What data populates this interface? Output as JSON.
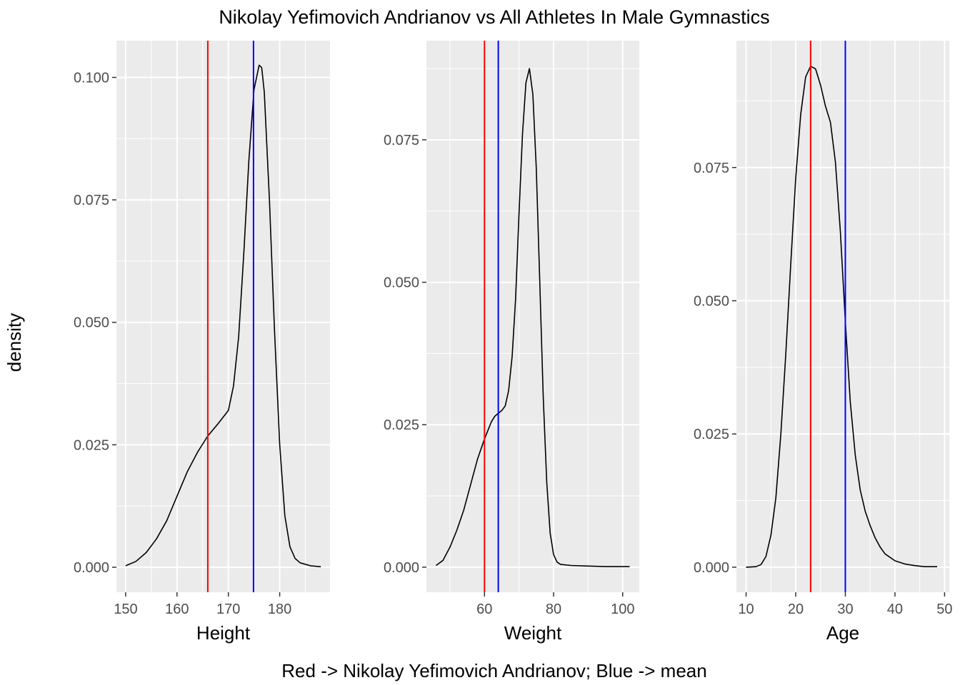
{
  "chart_data": {
    "type": "line",
    "title": "Nikolay Yefimovich Andrianov vs All Athletes In Male Gymnastics",
    "ylabel": "density",
    "caption": "Red -> Nikolay Yefimovich Andrianov; Blue -> mean",
    "colors": {
      "athlete_line": "#ff0000",
      "mean_line": "#0000ff",
      "curve": "#000000",
      "panel_bg": "#ebebeb",
      "grid": "#ffffff"
    },
    "grid": true,
    "panels": [
      {
        "xlabel": "Height",
        "xlim": [
          148.2,
          189.8
        ],
        "ylim": [
          -0.0051,
          0.1075
        ],
        "xticks": [
          150,
          160,
          170,
          180
        ],
        "xtick_labels": [
          "150",
          "160",
          "170",
          "180"
        ],
        "yticks": [
          0.0,
          0.025,
          0.05,
          0.075,
          0.1
        ],
        "ytick_labels": [
          "0.000",
          "0.025",
          "0.050",
          "0.075",
          "0.100"
        ],
        "athlete_value": 166,
        "mean_value": 174.9,
        "density": {
          "x": [
            150,
            152,
            154,
            156,
            158,
            160,
            162,
            164,
            166,
            168,
            170,
            171,
            172,
            173,
            174,
            175,
            176,
            176.5,
            177,
            178,
            179,
            180,
            181,
            182,
            183,
            184,
            186,
            188
          ],
          "y": [
            0.0003,
            0.0012,
            0.003,
            0.0058,
            0.0095,
            0.0145,
            0.0195,
            0.0235,
            0.0268,
            0.0293,
            0.032,
            0.037,
            0.047,
            0.064,
            0.083,
            0.0975,
            0.1025,
            0.102,
            0.097,
            0.075,
            0.048,
            0.025,
            0.0105,
            0.0042,
            0.0018,
            0.0009,
            0.0003,
            0.0001
          ]
        }
      },
      {
        "xlabel": "Weight",
        "xlim": [
          43.2,
          104.8
        ],
        "ylim": [
          -0.0044,
          0.0924
        ],
        "xticks": [
          60,
          80,
          100
        ],
        "xtick_labels": [
          "60",
          "80",
          "100"
        ],
        "yticks": [
          0.0,
          0.025,
          0.05,
          0.075
        ],
        "ytick_labels": [
          "0.000",
          "0.025",
          "0.050",
          "0.075"
        ],
        "athlete_value": 60,
        "mean_value": 64,
        "density": {
          "x": [
            46,
            48,
            50,
            52,
            54,
            56,
            58,
            60,
            62,
            63,
            64,
            65,
            66,
            67,
            68,
            69,
            70,
            71,
            72,
            73,
            74,
            75,
            76,
            77,
            78,
            79,
            80,
            81,
            82,
            85,
            90,
            95,
            100,
            102
          ],
          "y": [
            0.0003,
            0.0012,
            0.0035,
            0.0065,
            0.01,
            0.0145,
            0.019,
            0.0225,
            0.0255,
            0.0265,
            0.027,
            0.0275,
            0.0283,
            0.031,
            0.037,
            0.047,
            0.062,
            0.076,
            0.085,
            0.0875,
            0.083,
            0.07,
            0.05,
            0.03,
            0.015,
            0.006,
            0.0022,
            0.0009,
            0.0005,
            0.0003,
            0.0002,
            0.0001,
            0.0001,
            0.0001
          ]
        }
      },
      {
        "xlabel": "Age",
        "xlim": [
          8.05,
          50.95
        ],
        "ylim": [
          -0.0047,
          0.0988
        ],
        "xticks": [
          10,
          20,
          30,
          40,
          50
        ],
        "xtick_labels": [
          "10",
          "20",
          "30",
          "40",
          "50"
        ],
        "yticks": [
          0.0,
          0.025,
          0.05,
          0.075
        ],
        "ytick_labels": [
          "0.000",
          "0.025",
          "0.050",
          "0.075"
        ],
        "athlete_value": 23,
        "mean_value": 30,
        "density": {
          "x": [
            10,
            12,
            13,
            14,
            15,
            16,
            17,
            18,
            19,
            20,
            21,
            22,
            23,
            24,
            25,
            26,
            27,
            28,
            29,
            30,
            31,
            32,
            33,
            34,
            35,
            36,
            37,
            38,
            40,
            42,
            44,
            46,
            48.5
          ],
          "y": [
            0.0,
            0.0001,
            0.0005,
            0.002,
            0.006,
            0.013,
            0.025,
            0.04,
            0.057,
            0.073,
            0.085,
            0.092,
            0.094,
            0.0935,
            0.0905,
            0.0865,
            0.0835,
            0.076,
            0.063,
            0.046,
            0.031,
            0.021,
            0.0145,
            0.0105,
            0.0078,
            0.0055,
            0.0038,
            0.0025,
            0.0012,
            0.0006,
            0.0003,
            0.0001,
            0.0001
          ]
        }
      }
    ]
  }
}
